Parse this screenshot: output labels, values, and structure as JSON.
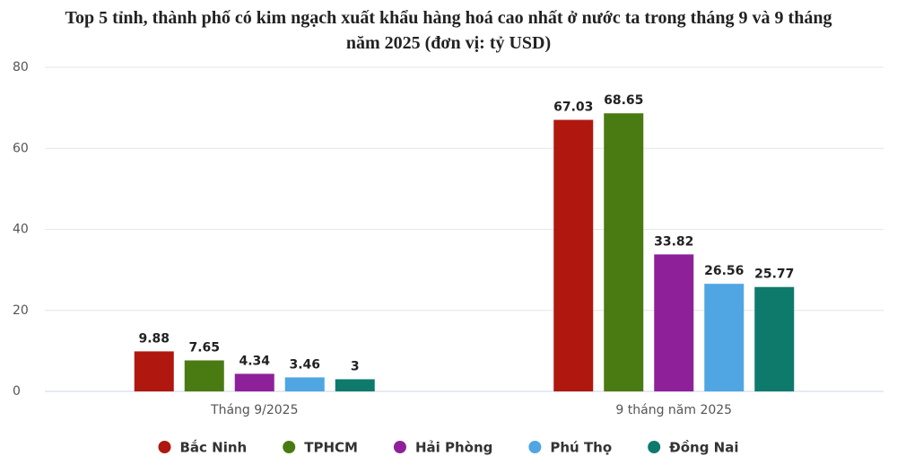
{
  "chart_data": {
    "type": "bar",
    "title": "Top 5 tỉnh, thành phố có kim ngạch xuất khẩu hàng hoá cao nhất ở nước ta trong tháng 9 và 9 tháng năm 2025 (đơn vị: tỷ USD)",
    "categories": [
      "Tháng 9/2025",
      "9 tháng năm 2025"
    ],
    "series": [
      {
        "name": "Bắc Ninh",
        "color": "#b0170f",
        "values": [
          9.88,
          67.03
        ]
      },
      {
        "name": "TPHCM",
        "color": "#4a7a12",
        "values": [
          7.65,
          68.65
        ]
      },
      {
        "name": "Hải Phòng",
        "color": "#8e2199",
        "values": [
          4.34,
          33.82
        ]
      },
      {
        "name": "Phú Thọ",
        "color": "#4fa6e3",
        "values": [
          3.46,
          26.56
        ]
      },
      {
        "name": "Đồng Nai",
        "color": "#0e7a6c",
        "values": [
          3,
          25.77
        ]
      }
    ],
    "ylim": [
      0,
      80
    ],
    "yticks": [
      0,
      20,
      40,
      60,
      80
    ],
    "grid": true,
    "legend": "bottom"
  }
}
